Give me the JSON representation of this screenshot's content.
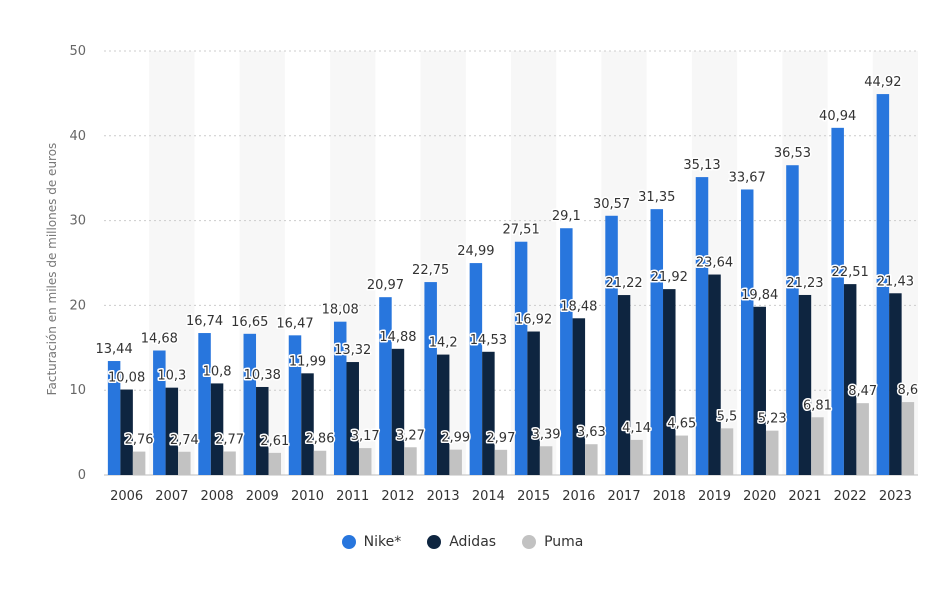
{
  "chart_data": {
    "type": "bar",
    "ylabel": "Facturación en miles de millones de euros",
    "ylim": [
      0,
      50
    ],
    "yticks": [
      0,
      10,
      20,
      30,
      40,
      50
    ],
    "grid": true,
    "legend_position": "bottom-center",
    "categories": [
      "2006",
      "2007",
      "2008",
      "2009",
      "2010",
      "2011",
      "2012",
      "2013",
      "2014",
      "2015",
      "2016",
      "2017",
      "2018",
      "2019",
      "2020",
      "2021",
      "2022",
      "2023"
    ],
    "series": [
      {
        "name": "Nike*",
        "color": "#2876dd",
        "values": [
          13.44,
          14.68,
          16.74,
          16.65,
          16.47,
          18.08,
          20.97,
          22.75,
          24.99,
          27.51,
          29.1,
          30.57,
          31.35,
          35.13,
          33.67,
          36.53,
          40.94,
          44.92
        ],
        "labels": [
          "13,44",
          "14,68",
          "16,74",
          "16,65",
          "16,47",
          "18,08",
          "20,97",
          "22,75",
          "24,99",
          "27,51",
          "29,1",
          "30,57",
          "31,35",
          "35,13",
          "33,67",
          "36,53",
          "40,94",
          "44,92"
        ]
      },
      {
        "name": "Adidas",
        "color": "#0e2540",
        "values": [
          10.08,
          10.3,
          10.8,
          10.38,
          11.99,
          13.32,
          14.88,
          14.2,
          14.53,
          16.92,
          18.48,
          21.22,
          21.92,
          23.64,
          19.84,
          21.23,
          22.51,
          21.43
        ],
        "labels": [
          "10,08",
          "10,3",
          "10,8",
          "10,38",
          "11,99",
          "13,32",
          "14,88",
          "14,2",
          "14,53",
          "16,92",
          "18,48",
          "21,22",
          "21,92",
          "23,64",
          "19,84",
          "21,23",
          "22,51",
          "21,43"
        ]
      },
      {
        "name": "Puma",
        "color": "#c2c2c2",
        "values": [
          2.76,
          2.74,
          2.77,
          2.61,
          2.86,
          3.17,
          3.27,
          2.99,
          2.97,
          3.39,
          3.63,
          4.14,
          4.65,
          5.5,
          5.23,
          6.81,
          8.47,
          8.6
        ],
        "labels": [
          "2,76",
          "2,74",
          "2,77",
          "2,61",
          "2,86",
          "3,17",
          "3,27",
          "2,99",
          "2,97",
          "3,39",
          "3,63",
          "4,14",
          "4,65",
          "5,5",
          "5,23",
          "6,81",
          "8,47",
          "8,6"
        ]
      }
    ]
  }
}
